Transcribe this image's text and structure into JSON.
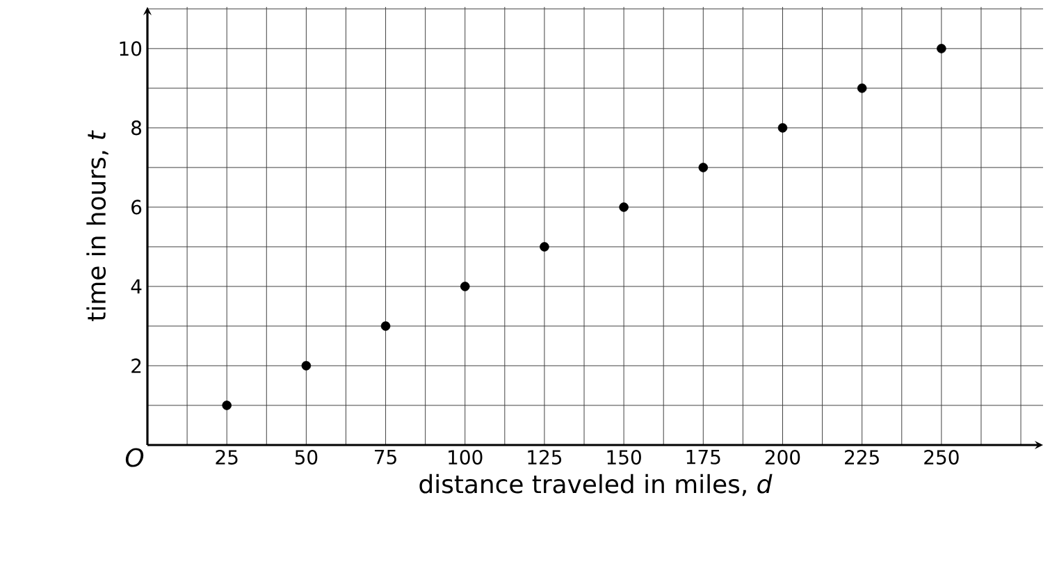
{
  "chart_data": {
    "type": "scatter",
    "xlabel": "distance traveled in miles, *d*",
    "ylabel": "time in hours, *t*",
    "x": [
      25,
      50,
      75,
      100,
      125,
      150,
      175,
      200,
      225,
      250
    ],
    "series": [
      {
        "color": "#000000",
        "values": [
          1,
          2,
          3,
          4,
          5,
          6,
          7,
          8,
          9,
          10
        ]
      }
    ],
    "xlim": [
      0,
      282
    ],
    "ylim": [
      0,
      11.05
    ],
    "xticks": [
      {
        "value": 12.5,
        "label": null
      },
      25,
      {
        "value": 37.5,
        "label": null
      },
      50,
      {
        "value": 62.5,
        "label": null
      },
      75,
      {
        "value": 87.5,
        "label": null
      },
      100,
      {
        "value": 112.5,
        "label": null
      },
      125,
      {
        "value": 137.5,
        "label": null
      },
      150,
      {
        "value": 162.5,
        "label": null
      },
      175,
      {
        "value": 187.5,
        "label": null
      },
      200,
      {
        "value": 212.5,
        "label": null
      },
      225,
      {
        "value": 237.5,
        "label": null
      },
      250,
      {
        "value": 262.5,
        "label": null
      },
      {
        "value": 275,
        "label": null
      }
    ],
    "yticks": [
      {
        "value": 1,
        "label": null
      },
      2,
      {
        "value": 3,
        "label": null
      },
      4,
      {
        "value": 5,
        "label": null
      },
      6,
      {
        "value": 7,
        "label": null
      },
      8,
      {
        "value": 9,
        "label": null
      },
      10,
      {
        "value": 11,
        "label": null
      }
    ],
    "annotations": [
      "O"
    ],
    "grid": true,
    "marker": "circle"
  }
}
